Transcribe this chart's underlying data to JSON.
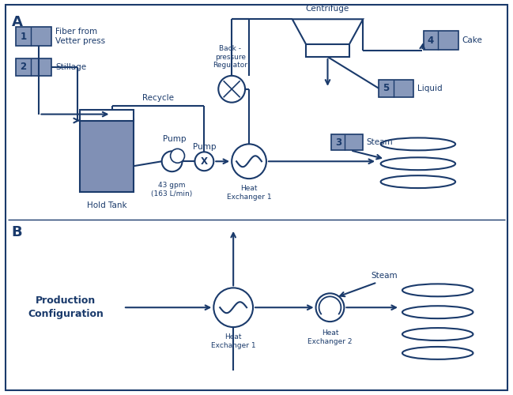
{
  "dark_blue": "#1a3a6b",
  "box_fill": "#8899bb",
  "tank_fill": "#7788aa",
  "label_A": "A",
  "label_B": "B",
  "fiber_text": "Fiber from\nVetter press",
  "stillage_text": "Stillage",
  "hold_tank_text": "Hold Tank",
  "recycle_text": "Recycle",
  "pump_text": "Pump",
  "pump_rate_text": "43 gpm\n(163 L/min)",
  "heat_ex1A_text": "Heat\nExchanger 1",
  "back_pressure_text": "Back -\npressure\nRegulator",
  "centrifuge_text": "Centrifuge",
  "cake_text": "Cake",
  "liquid_text": "Liquid",
  "steam3_text": "Steam",
  "heat_ex1B_text": "Heat\nExchanger 1",
  "heat_ex2B_text": "Heat\nExchanger 2",
  "steam_B_text": "Steam",
  "prod_config_text": "Production\nConfiguration"
}
